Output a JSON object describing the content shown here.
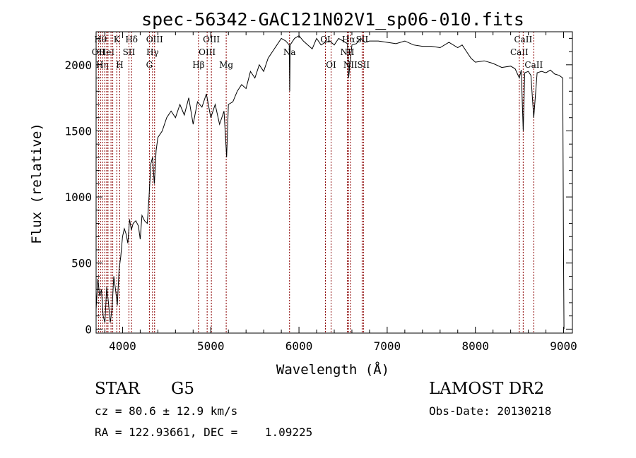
{
  "chart_data": {
    "type": "line",
    "title": "spec-56342-GAC121N02V1_sp06-010.fits",
    "xlabel": "Wavelength (Å)",
    "ylabel": "Flux (relative)",
    "xlim": [
      3700,
      9100
    ],
    "ylim": [
      -30,
      2250
    ],
    "x_ticks": [
      4000,
      5000,
      6000,
      7000,
      8000,
      9000
    ],
    "x_tick_labels": [
      "4000",
      "5000",
      "6000",
      "7000",
      "8000",
      "9000"
    ],
    "y_ticks": [
      0,
      500,
      1000,
      1500,
      2000
    ],
    "y_tick_labels": [
      "0",
      "500",
      "1000",
      "1500",
      "2000"
    ],
    "grid": false,
    "line_color": "#000000",
    "marker_color": "#8b0000",
    "series": [
      {
        "x": [
          3700,
          3720,
          3740,
          3760,
          3780,
          3800,
          3820,
          3840,
          3860,
          3880,
          3900,
          3920,
          3940,
          3960,
          3980,
          4000,
          4020,
          4040,
          4060,
          4080,
          4100,
          4120,
          4150,
          4180,
          4200,
          4220,
          4250,
          4280,
          4300,
          4320,
          4340,
          4360,
          4380,
          4400,
          4450,
          4500,
          4550,
          4600,
          4650,
          4700,
          4750,
          4800,
          4850,
          4900,
          4950,
          5000,
          5050,
          5100,
          5150,
          5180,
          5200,
          5250,
          5300,
          5350,
          5400,
          5450,
          5500,
          5550,
          5600,
          5650,
          5700,
          5750,
          5800,
          5850,
          5890,
          5895,
          5900,
          5950,
          6000,
          6050,
          6100,
          6150,
          6200,
          6250,
          6300,
          6350,
          6400,
          6450,
          6500,
          6550,
          6563,
          6600,
          6650,
          6700,
          6750,
          6800,
          6900,
          7000,
          7100,
          7200,
          7300,
          7400,
          7500,
          7600,
          7700,
          7800,
          7850,
          7900,
          7950,
          8000,
          8100,
          8200,
          8300,
          8400,
          8450,
          8498,
          8520,
          8542,
          8560,
          8600,
          8630,
          8662,
          8700,
          8750,
          8800,
          8850,
          8900,
          8950,
          8990,
          9000,
          9005
        ],
        "y": [
          150,
          380,
          250,
          300,
          100,
          50,
          320,
          200,
          50,
          150,
          400,
          300,
          180,
          450,
          550,
          700,
          760,
          720,
          650,
          830,
          750,
          800,
          820,
          780,
          680,
          860,
          820,
          800,
          1000,
          1250,
          1300,
          1100,
          1350,
          1450,
          1500,
          1600,
          1650,
          1600,
          1700,
          1620,
          1750,
          1550,
          1720,
          1680,
          1780,
          1600,
          1700,
          1550,
          1650,
          1300,
          1700,
          1720,
          1800,
          1850,
          1820,
          1950,
          1900,
          2000,
          1950,
          2050,
          2100,
          2150,
          2200,
          2180,
          2150,
          1800,
          2150,
          2200,
          2220,
          2180,
          2150,
          2120,
          2200,
          2150,
          2170,
          2180,
          2150,
          2200,
          2180,
          2160,
          1900,
          2150,
          2160,
          2200,
          2170,
          2180,
          2180,
          2170,
          2160,
          2180,
          2150,
          2140,
          2140,
          2130,
          2170,
          2130,
          2150,
          2100,
          2050,
          2020,
          2030,
          2010,
          1980,
          1990,
          1970,
          1900,
          1960,
          1500,
          1940,
          1950,
          1920,
          1600,
          1940,
          1950,
          1940,
          1960,
          1930,
          1920,
          1900,
          500,
          0
        ]
      }
    ],
    "line_markers": [
      {
        "x": 3727,
        "label": "OII",
        "row": 1
      },
      {
        "x": 3750,
        "label": "Hθ",
        "row": 0
      },
      {
        "x": 3771,
        "label": "Hη",
        "row": 2
      },
      {
        "x": 3798,
        "label": "",
        "row": -1
      },
      {
        "x": 3820,
        "label": "HeI",
        "row": 1
      },
      {
        "x": 3835,
        "label": "",
        "row": -1
      },
      {
        "x": 3869,
        "label": "",
        "row": -1
      },
      {
        "x": 3889,
        "label": "",
        "row": -1
      },
      {
        "x": 3934,
        "label": "K",
        "row": 0
      },
      {
        "x": 3968,
        "label": "H",
        "row": 2
      },
      {
        "x": 4072,
        "label": "SII",
        "row": 1
      },
      {
        "x": 4102,
        "label": "Hδ",
        "row": 0
      },
      {
        "x": 4304,
        "label": "G",
        "row": 2
      },
      {
        "x": 4340,
        "label": "Hγ",
        "row": 1
      },
      {
        "x": 4363,
        "label": "OIII",
        "row": 0
      },
      {
        "x": 4861,
        "label": "Hβ",
        "row": 2
      },
      {
        "x": 4959,
        "label": "OIII",
        "row": 1
      },
      {
        "x": 5007,
        "label": "OIII",
        "row": 0
      },
      {
        "x": 5175,
        "label": "Mg",
        "row": 2
      },
      {
        "x": 5893,
        "label": "Na",
        "row": 1
      },
      {
        "x": 6300,
        "label": "OI",
        "row": 0
      },
      {
        "x": 6364,
        "label": "OI",
        "row": 2
      },
      {
        "x": 6548,
        "label": "NII",
        "row": 1
      },
      {
        "x": 6563,
        "label": "Hα",
        "row": 0
      },
      {
        "x": 6583,
        "label": "NII",
        "row": 2
      },
      {
        "x": 6716,
        "label": "SII",
        "row": 0
      },
      {
        "x": 6731,
        "label": "SII",
        "row": 2
      },
      {
        "x": 8498,
        "label": "CaII",
        "row": 1
      },
      {
        "x": 8542,
        "label": "CaII",
        "row": 0
      },
      {
        "x": 8662,
        "label": "CaII",
        "row": 2
      }
    ]
  },
  "info": {
    "object_class": "STAR",
    "subclass": "G5",
    "survey": "LAMOST DR2",
    "redshift": "cz = 80.6 ± 12.9 km/s",
    "obs_date": "Obs-Date: 20130218",
    "coords": "RA = 122.93661, DEC =    1.09225"
  }
}
